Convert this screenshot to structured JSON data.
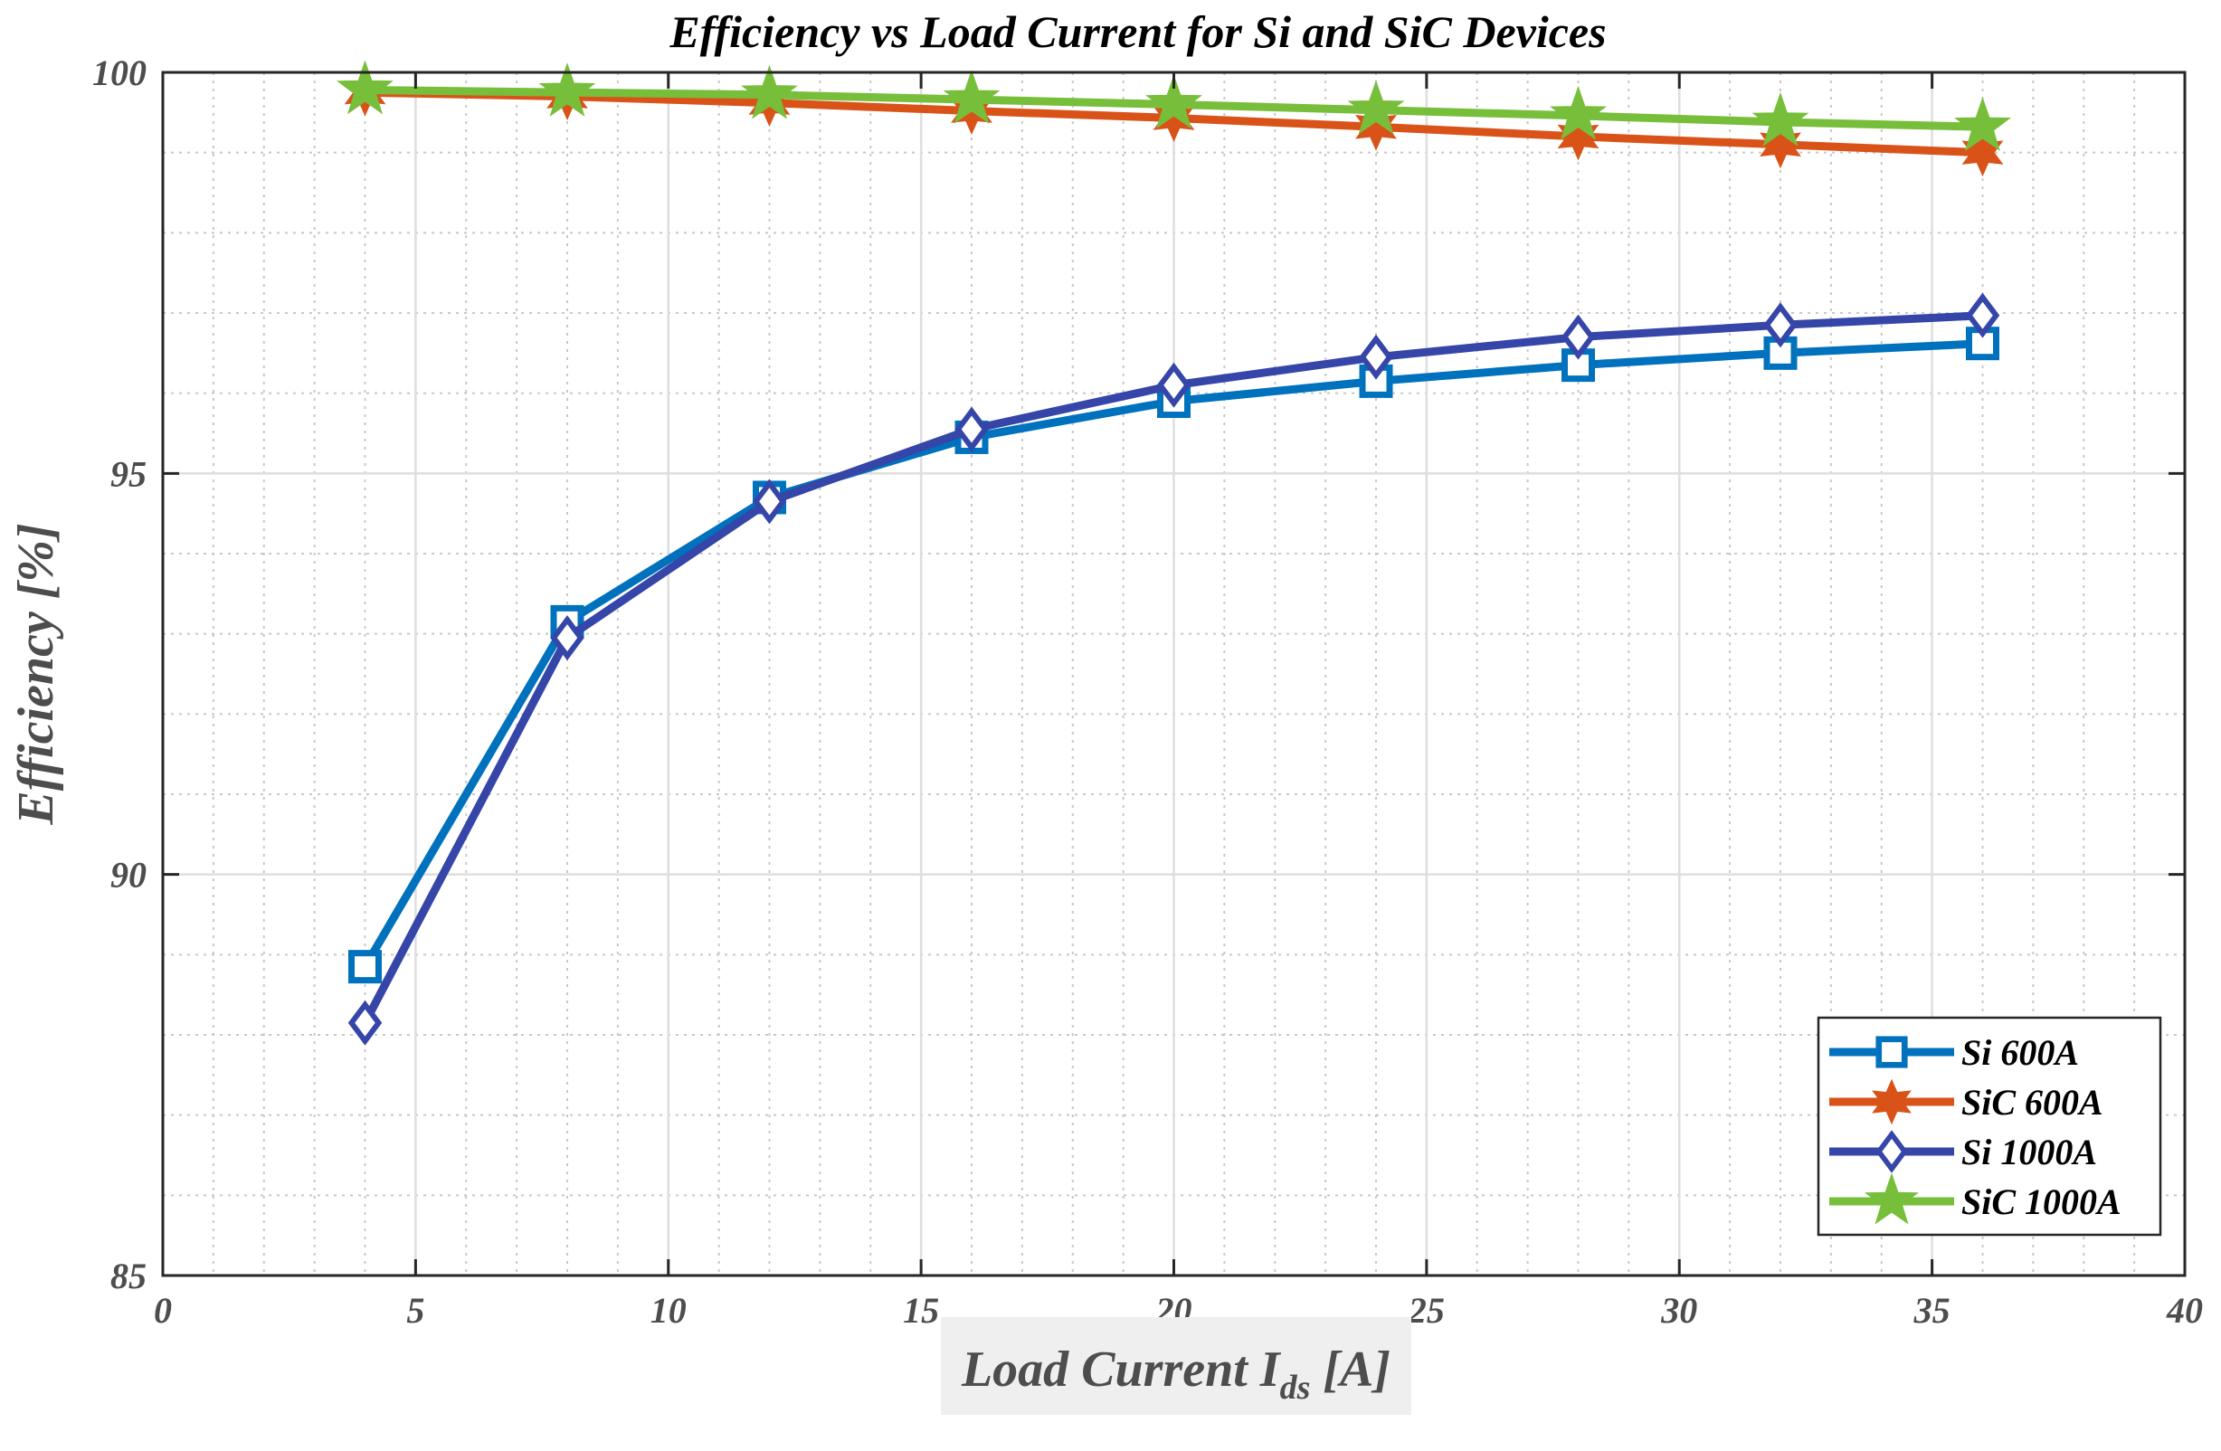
{
  "chart_data": {
    "type": "line",
    "title": "Efficiency vs Load Current for Si and SiC Devices",
    "xlabel": {
      "main": "Load Current I",
      "subscript": "ds",
      "suffix": " [A]"
    },
    "ylabel": "Efficiency [%]",
    "xlim": [
      0,
      40
    ],
    "ylim": [
      85,
      100
    ],
    "xticks": [
      0,
      5,
      10,
      15,
      20,
      25,
      30,
      35,
      40
    ],
    "yticks": [
      85,
      90,
      95,
      100
    ],
    "x_minor_step": 1,
    "y_minor_step": 1,
    "grid": true,
    "legend_position": "bottom-right",
    "x": [
      4,
      8,
      12,
      16,
      20,
      24,
      28,
      32,
      36
    ],
    "series": [
      {
        "name": "Si 600A",
        "color": "#0072BD",
        "marker": "square",
        "values": [
          88.85,
          93.15,
          94.7,
          95.45,
          95.9,
          96.15,
          96.35,
          96.5,
          96.62
        ]
      },
      {
        "name": "SiC 600A",
        "color": "#D95319",
        "marker": "hexagram",
        "values": [
          99.75,
          99.7,
          99.62,
          99.52,
          99.43,
          99.32,
          99.2,
          99.1,
          99.0
        ]
      },
      {
        "name": "Si 1000A",
        "color": "#3545A8",
        "marker": "diamond",
        "values": [
          88.15,
          92.95,
          94.65,
          95.55,
          96.1,
          96.45,
          96.7,
          96.85,
          96.97
        ]
      },
      {
        "name": "SiC 1000A",
        "color": "#77BE3A",
        "marker": "pentagram",
        "values": [
          99.78,
          99.75,
          99.72,
          99.66,
          99.6,
          99.53,
          99.46,
          99.38,
          99.32
        ]
      }
    ]
  }
}
